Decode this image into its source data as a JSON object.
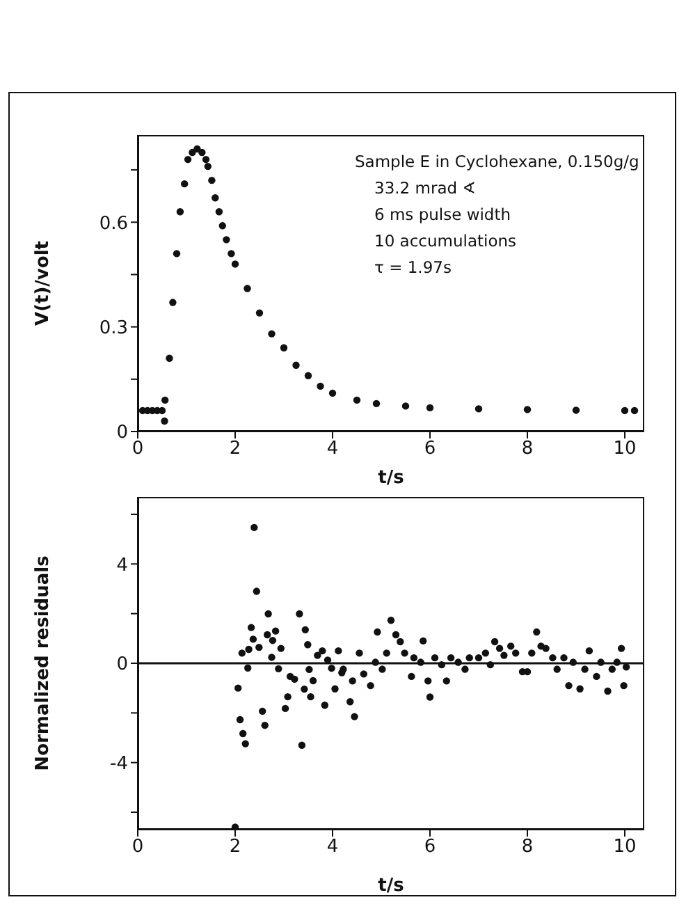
{
  "chart_data": [
    {
      "type": "scatter",
      "xlabel": "t/s",
      "ylabel": "V(t)/volt",
      "marker": "circle",
      "grid": false,
      "xlim": [
        0,
        10.4
      ],
      "ylim": [
        0,
        0.85
      ],
      "xticks": [
        0,
        2,
        4,
        6,
        8,
        10
      ],
      "yticks": [
        0,
        {
          "value": 0.15,
          "label": null
        },
        0.3,
        {
          "value": 0.45,
          "label": null
        },
        0.6,
        {
          "value": 0.75,
          "label": null
        }
      ],
      "annotations": [
        "Sample E in Cyclohexane, 0.150g/g",
        "33.2 mrad ∢",
        "6 ms pulse width",
        "10 accumulations",
        "τ = 1.97s"
      ],
      "series": [
        {
          "color": "#111111",
          "x": [
            0.1,
            0.2,
            0.3,
            0.4,
            0.5,
            0.55,
            0.56,
            0.65,
            0.72,
            0.8,
            0.87,
            0.96,
            1.03,
            1.12,
            1.22,
            1.32,
            1.4,
            1.44,
            1.52,
            1.59,
            1.67,
            1.74,
            1.82,
            1.92,
            2.0,
            2.25,
            2.5,
            2.75,
            3.0,
            3.25,
            3.5,
            3.75,
            4.0,
            4.5,
            4.9,
            5.5,
            6.0,
            7.0,
            8.0,
            9.0,
            10.0,
            10.2
          ],
          "values": [
            0.06,
            0.06,
            0.06,
            0.06,
            0.06,
            0.03,
            0.09,
            0.21,
            0.37,
            0.51,
            0.63,
            0.71,
            0.78,
            0.8,
            0.81,
            0.8,
            0.78,
            0.76,
            0.72,
            0.67,
            0.63,
            0.59,
            0.55,
            0.51,
            0.48,
            0.41,
            0.34,
            0.28,
            0.24,
            0.19,
            0.16,
            0.13,
            0.11,
            0.09,
            0.08,
            0.073,
            0.068,
            0.065,
            0.063,
            0.061,
            0.06,
            0.06
          ]
        }
      ]
    },
    {
      "type": "scatter",
      "xlabel": "t/s",
      "ylabel": "Normalized residuals",
      "marker": "circle",
      "grid": false,
      "xlim": [
        0,
        10.4
      ],
      "ylim": [
        -6.7,
        6.7
      ],
      "xticks": [
        0,
        2,
        4,
        6,
        8,
        10
      ],
      "yticks": [
        {
          "value": -6,
          "label": null
        },
        -4,
        {
          "value": -2,
          "label": null
        },
        0,
        {
          "value": 2,
          "label": null
        },
        4,
        {
          "value": 6,
          "label": null
        }
      ],
      "ref_lines": [
        {
          "axis": "y",
          "value": 0,
          "color": "#111111"
        }
      ],
      "series": [
        {
          "color": "#111111",
          "x": [
            2.0,
            2.06,
            2.1,
            2.14,
            2.16,
            2.21,
            2.26,
            2.28,
            2.33,
            2.37,
            2.39,
            2.44,
            2.49,
            2.56,
            2.61,
            2.66,
            2.68,
            2.75,
            2.77,
            2.83,
            2.89,
            2.94,
            3.03,
            3.08,
            3.13,
            3.22,
            3.32,
            3.37,
            3.42,
            3.44,
            3.49,
            3.52,
            3.55,
            3.6,
            3.69,
            3.79,
            3.84,
            3.9,
            3.98,
            4.05,
            4.12,
            4.19,
            4.22,
            4.36,
            4.41,
            4.45,
            4.55,
            4.64,
            4.78,
            4.88,
            4.92,
            5.02,
            5.11,
            5.2,
            5.3,
            5.39,
            5.48,
            5.62,
            5.67,
            5.81,
            5.86,
            5.96,
            6.0,
            6.1,
            6.24,
            6.34,
            6.43,
            6.58,
            6.72,
            6.81,
            7.0,
            7.14,
            7.24,
            7.33,
            7.43,
            7.52,
            7.66,
            7.76,
            7.9,
            8.0,
            8.09,
            8.19,
            8.28,
            8.38,
            8.52,
            8.61,
            8.75,
            8.85,
            8.94,
            9.08,
            9.18,
            9.27,
            9.42,
            9.51,
            9.65,
            9.74,
            9.84,
            9.93,
            9.98,
            10.03
          ],
          "values": [
            -6.6,
            -1.0,
            -2.27,
            0.41,
            -2.83,
            -3.24,
            -0.19,
            0.56,
            1.44,
            0.97,
            5.47,
            2.9,
            0.64,
            -1.93,
            -2.5,
            1.15,
            1.99,
            0.24,
            0.92,
            1.3,
            -0.22,
            0.6,
            -1.82,
            -1.35,
            -0.53,
            -0.64,
            1.99,
            -3.3,
            -1.04,
            1.35,
            0.75,
            -0.25,
            -1.35,
            -0.7,
            0.32,
            0.5,
            -1.69,
            0.13,
            -0.2,
            -1.03,
            0.5,
            -0.38,
            -0.24,
            -1.55,
            -0.71,
            -2.15,
            0.41,
            -0.43,
            -0.9,
            0.04,
            1.26,
            -0.24,
            0.41,
            1.73,
            1.15,
            0.87,
            0.41,
            -0.53,
            0.22,
            0.04,
            0.9,
            -0.71,
            -1.36,
            0.22,
            -0.06,
            -0.71,
            0.22,
            0.04,
            -0.24,
            0.22,
            0.22,
            0.41,
            -0.06,
            0.87,
            0.6,
            0.32,
            0.69,
            0.41,
            -0.34,
            -0.34,
            0.41,
            1.26,
            0.69,
            0.6,
            0.22,
            -0.24,
            0.22,
            -0.9,
            0.04,
            -1.03,
            -0.24,
            0.5,
            -0.53,
            0.04,
            -1.12,
            -0.24,
            0.04,
            0.6,
            -0.9,
            -0.15
          ]
        }
      ]
    }
  ]
}
